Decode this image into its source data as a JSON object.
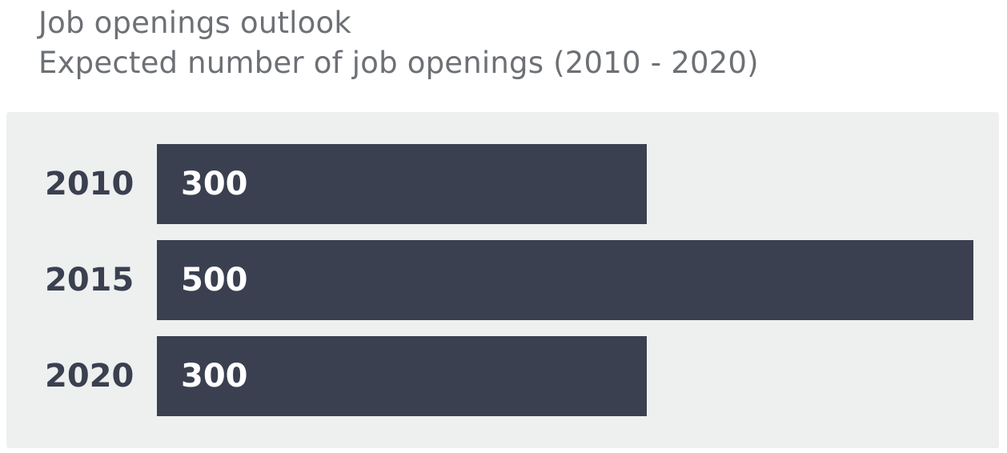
{
  "header": {
    "title": "Job openings outlook",
    "subtitle": "Expected number of job openings (2010 - 2020)"
  },
  "colors": {
    "bar": "#3a4050",
    "panel": "#eef0ef",
    "title": "#6d7075",
    "value_text": "#ffffff"
  },
  "chart_data": {
    "type": "bar",
    "orientation": "horizontal",
    "title": "Job openings outlook",
    "subtitle": "Expected number of job openings (2010 - 2020)",
    "categories": [
      "2010",
      "2015",
      "2020"
    ],
    "values": [
      300,
      500,
      300
    ],
    "value_labels": [
      "300",
      "500",
      "300"
    ],
    "xlim": [
      0,
      500
    ],
    "grid": false,
    "legend": "none"
  }
}
